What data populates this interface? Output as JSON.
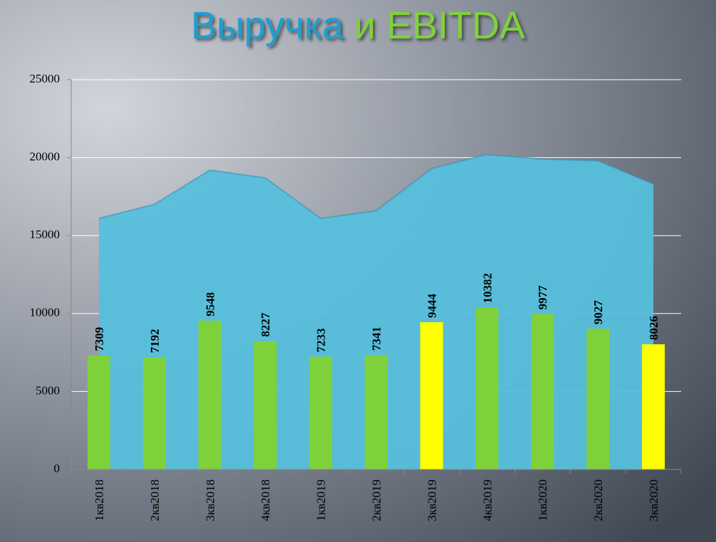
{
  "chart_data": {
    "type": "combo",
    "title": [
      "Выручка",
      "и EBITDA"
    ],
    "title_colors": [
      "#1e9fd0",
      "#7fd13b"
    ],
    "categories": [
      "1кв2018",
      "2кв2018",
      "3кв2018",
      "4кв2018",
      "1кв2019",
      "2кв2019",
      "3кв2019",
      "4кв2019",
      "1кв2020",
      "2кв2020",
      "3кв2020"
    ],
    "series": [
      {
        "type": "area",
        "color": "#56bfdc",
        "values": [
          16100,
          17000,
          19200,
          18700,
          16100,
          16600,
          19300,
          20200,
          19900,
          19800,
          18300
        ]
      },
      {
        "type": "bar",
        "colors": [
          "#7fd13b",
          "#7fd13b",
          "#7fd13b",
          "#7fd13b",
          "#7fd13b",
          "#7fd13b",
          "#ffff00",
          "#7fd13b",
          "#7fd13b",
          "#7fd13b",
          "#ffff00"
        ],
        "values": [
          7309,
          7192,
          9548,
          8227,
          7233,
          7341,
          9444,
          10382,
          9977,
          9027,
          8026
        ]
      }
    ],
    "ylim": [
      0,
      25000
    ],
    "yticks": [
      0,
      5000,
      10000,
      15000,
      20000,
      25000
    ],
    "grid": true
  }
}
